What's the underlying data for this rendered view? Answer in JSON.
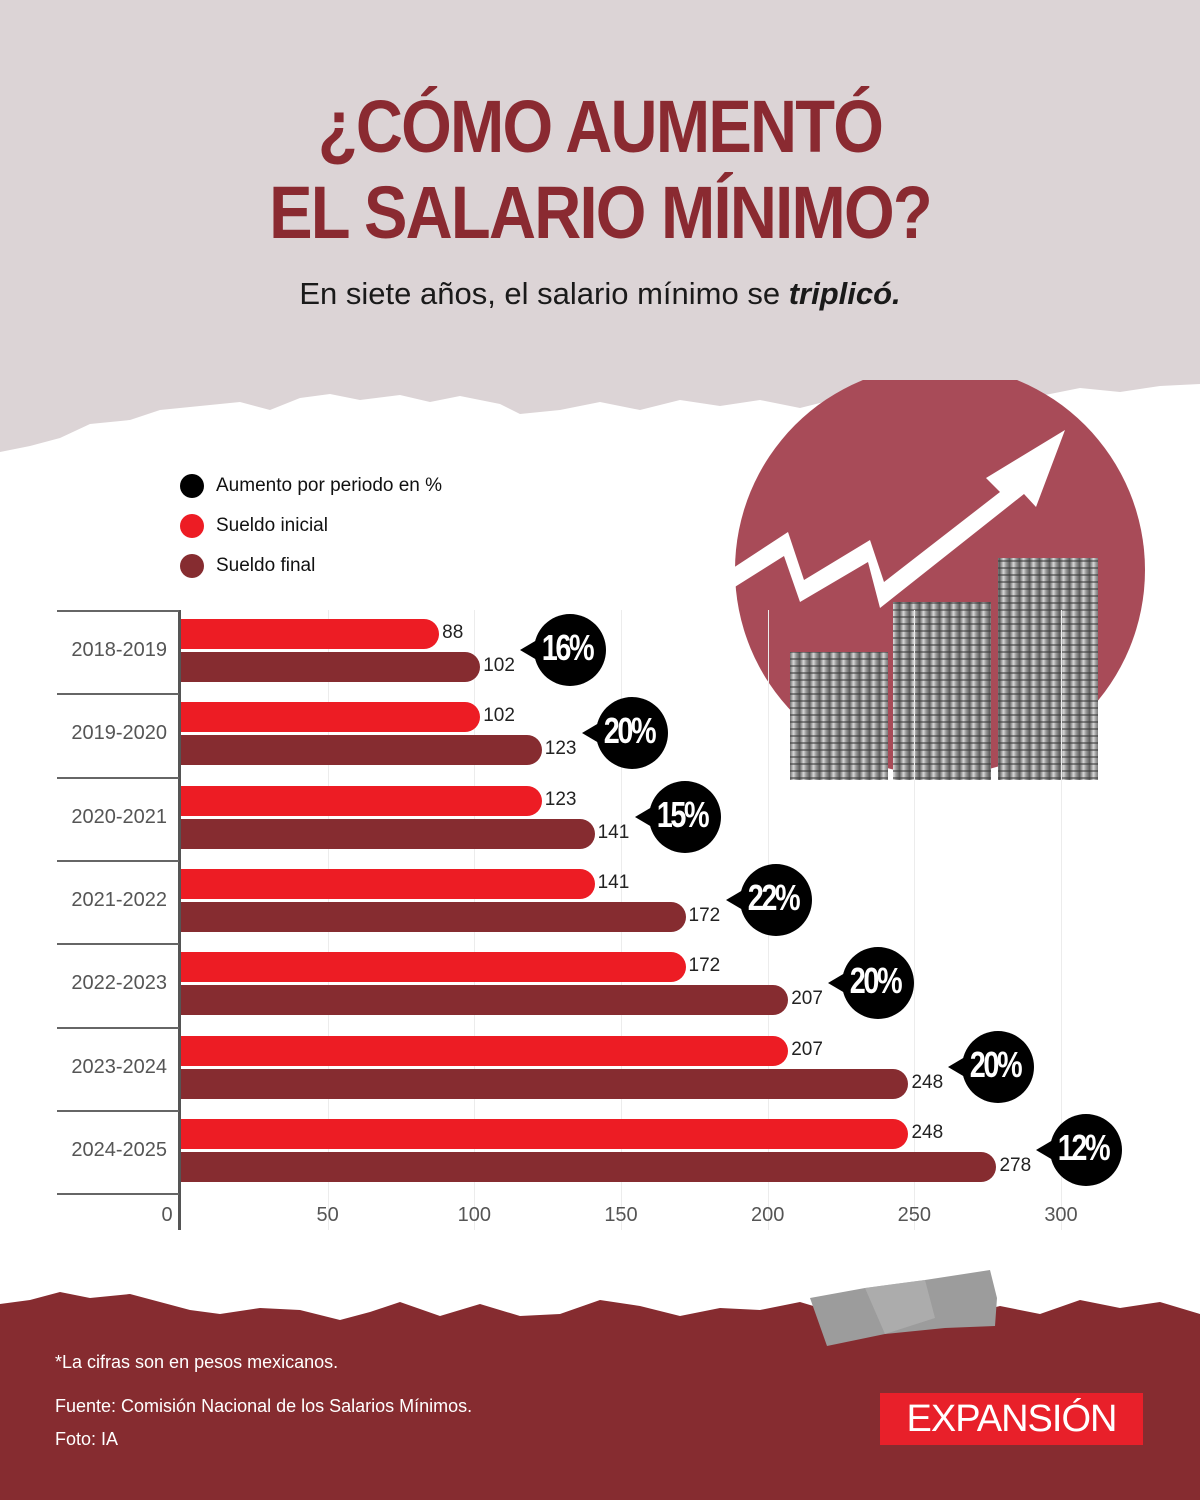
{
  "header": {
    "title_line1": "¿CÓMO AUMENTÓ",
    "title_line2": "EL SALARIO MÍNIMO?",
    "subtitle_prefix": "En siete años, el salario mínimo se ",
    "subtitle_emphasis": "triplicó."
  },
  "legend": [
    {
      "label": "Aumento por periodo en %",
      "color": "#000000"
    },
    {
      "label": "Sueldo inicial",
      "color": "#ed1c24"
    },
    {
      "label": "Sueldo final",
      "color": "#862c30"
    }
  ],
  "colors": {
    "title": "#8a2a31",
    "initial": "#ed1c24",
    "final": "#862c30",
    "bubble": "#000000",
    "background_top": "#dcd4d6",
    "background_bottom": "#862c30",
    "hero_circle": "#a84b58"
  },
  "chart_data": {
    "type": "bar",
    "orientation": "horizontal",
    "title": "¿CÓMO AUMENTÓ EL SALARIO MÍNIMO?",
    "subtitle": "En siete años, el salario mínimo se triplicó.",
    "categories": [
      "2018-2019",
      "2019-2020",
      "2020-2021",
      "2021-2022",
      "2022-2023",
      "2023-2024",
      "2024-2025"
    ],
    "series": [
      {
        "name": "Sueldo inicial",
        "values": [
          88,
          102,
          123,
          141,
          172,
          207,
          248
        ]
      },
      {
        "name": "Sueldo final",
        "values": [
          102,
          123,
          141,
          172,
          207,
          248,
          278
        ]
      }
    ],
    "annotations": {
      "name": "Aumento por periodo en %",
      "values": [
        "16%",
        "20%",
        "15%",
        "22%",
        "20%",
        "20%",
        "12%"
      ]
    },
    "x_ticks": [
      "0",
      "50",
      "100",
      "150",
      "200",
      "250",
      "300"
    ],
    "xlim": [
      0,
      300
    ],
    "xlabel": "",
    "ylabel": "",
    "grid": true,
    "legend_position": "top-left"
  },
  "footer": {
    "note": "*La cifras son en pesos mexicanos.",
    "source": "Fuente: Comisión Nacional de los Salarios Mínimos.",
    "photo": "Foto: IA",
    "logo": "EXPANSIÓN"
  }
}
